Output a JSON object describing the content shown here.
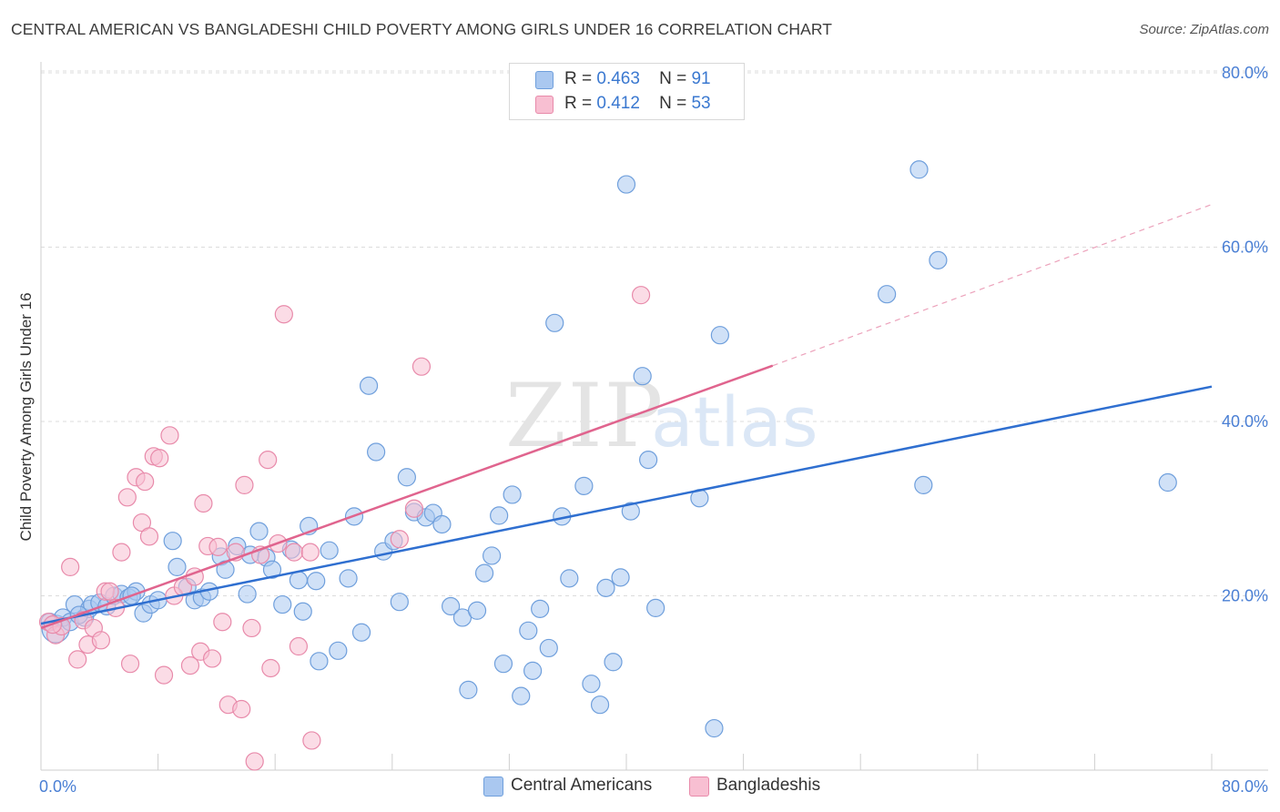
{
  "header": {
    "title": "CENTRAL AMERICAN VS BANGLADESHI CHILD POVERTY AMONG GIRLS UNDER 16 CORRELATION CHART",
    "source": "Source: ZipAtlas.com"
  },
  "legend": {
    "rows": [
      {
        "r_label": "R =",
        "r_value": "0.463",
        "n_label": "N =",
        "n_value": "91"
      },
      {
        "r_label": "R =",
        "r_value": "0.412",
        "n_label": "N =",
        "n_value": "53"
      }
    ],
    "bottom": [
      "Central Americans",
      "Bangladeshis"
    ]
  },
  "colors": {
    "blue_fill": "#aac8f0",
    "blue_stroke": "#6f9fdc",
    "blue_line": "#2f6fd0",
    "pink_fill": "#f8bfd2",
    "pink_stroke": "#e88aaa",
    "pink_line": "#e0648e",
    "grid": "#dcdcdc",
    "tick_label": "#4a7fd4"
  },
  "chart_data": {
    "type": "scatter",
    "title": "CENTRAL AMERICAN VS BANGLADESHI CHILD POVERTY AMONG GIRLS UNDER 16 CORRELATION CHART",
    "xlabel": "",
    "ylabel": "Child Poverty Among Girls Under 16",
    "xlim": [
      0,
      80
    ],
    "ylim": [
      0,
      82
    ],
    "x_tick_labels": [
      "0.0%",
      "80.0%"
    ],
    "y_tick_labels": [
      "20.0%",
      "40.0%",
      "60.0%",
      "80.0%"
    ],
    "y_ticks": [
      20,
      40,
      60,
      80
    ],
    "grid": true,
    "legend_position": "top-center",
    "series": [
      {
        "name": "Central Americans",
        "r": 0.463,
        "n": 91,
        "trend": {
          "x": [
            0,
            80
          ],
          "y": [
            16.8,
            44.0
          ],
          "dashed_extension": false
        },
        "points": [
          [
            1.0,
            16.2
          ],
          [
            1.5,
            17.5
          ],
          [
            2.0,
            17.0
          ],
          [
            2.3,
            19.0
          ],
          [
            3.0,
            17.5
          ],
          [
            3.3,
            18.5
          ],
          [
            3.5,
            19.0
          ],
          [
            4.0,
            19.2
          ],
          [
            4.5,
            18.8
          ],
          [
            5.0,
            20.0
          ],
          [
            5.5,
            20.2
          ],
          [
            6.0,
            19.8
          ],
          [
            6.5,
            20.5
          ],
          [
            7.0,
            18.0
          ],
          [
            7.5,
            19.0
          ],
          [
            8.0,
            19.5
          ],
          [
            9.0,
            26.3
          ],
          [
            9.3,
            23.3
          ],
          [
            10.0,
            21.0
          ],
          [
            10.5,
            19.5
          ],
          [
            11.0,
            19.8
          ],
          [
            11.5,
            20.5
          ],
          [
            12.3,
            24.5
          ],
          [
            12.6,
            23.0
          ],
          [
            13.4,
            25.7
          ],
          [
            14.1,
            20.2
          ],
          [
            14.3,
            24.7
          ],
          [
            14.9,
            27.4
          ],
          [
            15.4,
            24.4
          ],
          [
            15.8,
            23.0
          ],
          [
            16.5,
            19.0
          ],
          [
            17.1,
            25.3
          ],
          [
            17.6,
            21.8
          ],
          [
            17.9,
            18.2
          ],
          [
            18.3,
            28.0
          ],
          [
            18.8,
            21.7
          ],
          [
            19.0,
            12.5
          ],
          [
            19.7,
            25.2
          ],
          [
            20.3,
            13.7
          ],
          [
            21.0,
            22.0
          ],
          [
            21.4,
            29.1
          ],
          [
            21.9,
            15.8
          ],
          [
            22.4,
            44.1
          ],
          [
            22.9,
            36.5
          ],
          [
            23.4,
            25.1
          ],
          [
            24.1,
            26.3
          ],
          [
            24.5,
            19.3
          ],
          [
            25.0,
            33.6
          ],
          [
            25.5,
            29.6
          ],
          [
            26.3,
            29.0
          ],
          [
            26.8,
            29.5
          ],
          [
            27.4,
            28.2
          ],
          [
            28.0,
            18.8
          ],
          [
            28.8,
            17.5
          ],
          [
            29.2,
            9.2
          ],
          [
            29.8,
            18.3
          ],
          [
            30.3,
            22.6
          ],
          [
            30.8,
            24.6
          ],
          [
            31.3,
            29.2
          ],
          [
            31.6,
            12.2
          ],
          [
            32.2,
            31.6
          ],
          [
            32.8,
            8.5
          ],
          [
            33.3,
            16.0
          ],
          [
            33.6,
            11.4
          ],
          [
            34.1,
            18.5
          ],
          [
            34.7,
            14.0
          ],
          [
            35.1,
            51.3
          ],
          [
            35.6,
            29.1
          ],
          [
            36.1,
            22.0
          ],
          [
            37.1,
            32.6
          ],
          [
            37.6,
            9.9
          ],
          [
            38.2,
            7.5
          ],
          [
            38.6,
            20.9
          ],
          [
            39.1,
            12.4
          ],
          [
            39.6,
            22.1
          ],
          [
            40.0,
            67.2
          ],
          [
            40.3,
            29.7
          ],
          [
            41.1,
            45.2
          ],
          [
            41.5,
            35.6
          ],
          [
            42.0,
            18.6
          ],
          [
            45.0,
            31.2
          ],
          [
            46.4,
            49.9
          ],
          [
            46.0,
            4.8
          ],
          [
            57.8,
            54.6
          ],
          [
            60.0,
            68.9
          ],
          [
            60.3,
            32.7
          ],
          [
            61.3,
            58.5
          ],
          [
            77.0,
            33.0
          ],
          [
            0.6,
            17.0
          ],
          [
            2.6,
            17.8
          ],
          [
            6.2,
            20.0
          ]
        ]
      },
      {
        "name": "Bangladeshis",
        "r": 0.412,
        "n": 53,
        "trend": {
          "x": [
            0,
            50
          ],
          "y": [
            16.3,
            46.4
          ],
          "dashed_extension": true,
          "dashed_to": [
            80,
            64.9
          ]
        },
        "points": [
          [
            0.5,
            17.0
          ],
          [
            1.0,
            15.5
          ],
          [
            1.4,
            16.5
          ],
          [
            2.0,
            23.3
          ],
          [
            2.5,
            12.7
          ],
          [
            2.9,
            17.2
          ],
          [
            3.2,
            14.4
          ],
          [
            3.6,
            16.3
          ],
          [
            4.1,
            14.9
          ],
          [
            4.4,
            20.5
          ],
          [
            4.7,
            20.5
          ],
          [
            5.1,
            18.6
          ],
          [
            5.5,
            25.0
          ],
          [
            5.9,
            31.3
          ],
          [
            6.1,
            12.2
          ],
          [
            6.5,
            33.6
          ],
          [
            6.9,
            28.4
          ],
          [
            7.1,
            33.1
          ],
          [
            7.4,
            26.8
          ],
          [
            7.7,
            36.0
          ],
          [
            8.1,
            35.8
          ],
          [
            8.4,
            10.9
          ],
          [
            8.8,
            38.4
          ],
          [
            9.1,
            20.0
          ],
          [
            9.7,
            21.0
          ],
          [
            10.2,
            12.0
          ],
          [
            10.5,
            22.2
          ],
          [
            10.9,
            13.6
          ],
          [
            11.1,
            30.6
          ],
          [
            11.4,
            25.7
          ],
          [
            11.7,
            12.8
          ],
          [
            12.1,
            25.6
          ],
          [
            12.4,
            17.0
          ],
          [
            12.8,
            7.5
          ],
          [
            13.3,
            25.0
          ],
          [
            13.7,
            7.0
          ],
          [
            13.9,
            32.7
          ],
          [
            14.4,
            16.3
          ],
          [
            14.6,
            1.0
          ],
          [
            15.0,
            24.7
          ],
          [
            15.5,
            35.6
          ],
          [
            15.7,
            11.7
          ],
          [
            16.2,
            26.0
          ],
          [
            16.6,
            52.3
          ],
          [
            17.3,
            25.0
          ],
          [
            17.6,
            14.2
          ],
          [
            18.4,
            25.0
          ],
          [
            18.5,
            3.4
          ],
          [
            25.5,
            30.0
          ],
          [
            26.0,
            46.3
          ],
          [
            24.5,
            26.5
          ],
          [
            41.0,
            54.5
          ],
          [
            0.8,
            16.7
          ]
        ]
      }
    ]
  }
}
